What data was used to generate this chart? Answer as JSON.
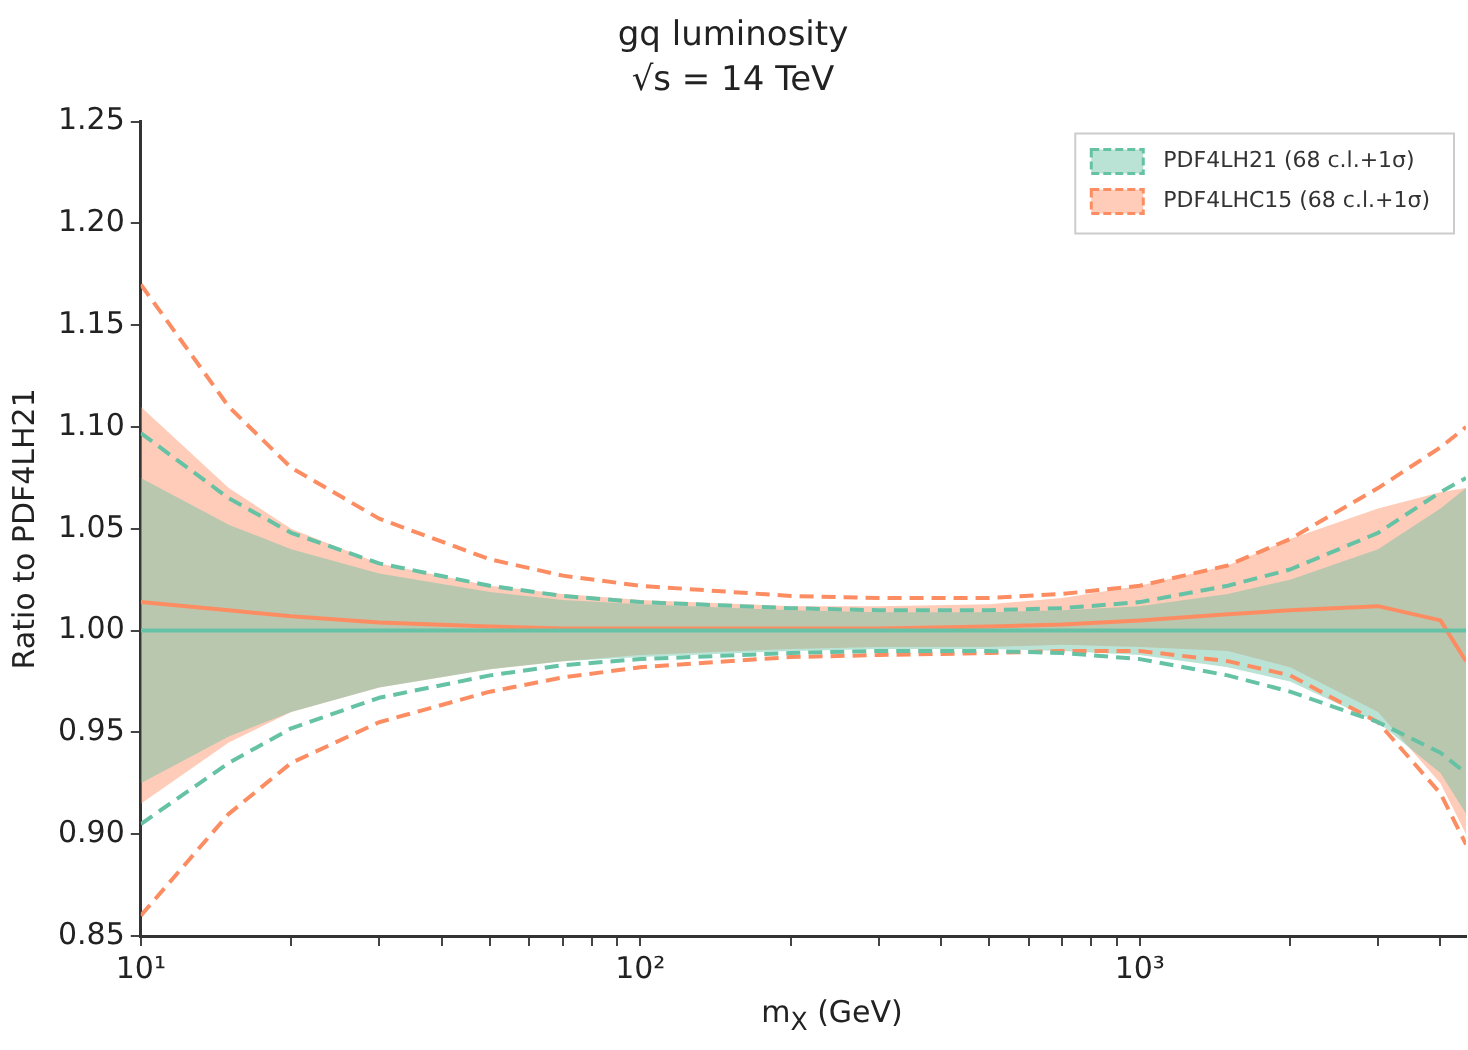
{
  "chart_data": {
    "type": "line",
    "title": "gq luminosity",
    "subtitle": "√s = 14 TeV",
    "xlabel": "m$_{X}$ (GeV)",
    "ylabel": "Ratio to PDF4LH21",
    "x": [
      10,
      15,
      20,
      30,
      50,
      70,
      100,
      200,
      300,
      500,
      700,
      1000,
      1500,
      2000,
      3000,
      4000,
      4500
    ],
    "log": "x",
    "xlim": [
      10,
      4500
    ],
    "ylim": [
      0.85,
      1.25
    ],
    "xticks": [
      {
        "value": 10,
        "label": "10¹"
      },
      {
        "value": 20,
        "label": null
      },
      {
        "value": 30,
        "label": null
      },
      {
        "value": 40,
        "label": null
      },
      {
        "value": 50,
        "label": null
      },
      {
        "value": 60,
        "label": null
      },
      {
        "value": 70,
        "label": null
      },
      {
        "value": 80,
        "label": null
      },
      {
        "value": 90,
        "label": null
      },
      {
        "value": 100,
        "label": "10²"
      },
      {
        "value": 200,
        "label": null
      },
      {
        "value": 300,
        "label": null
      },
      {
        "value": 400,
        "label": null
      },
      {
        "value": 500,
        "label": null
      },
      {
        "value": 600,
        "label": null
      },
      {
        "value": 700,
        "label": null
      },
      {
        "value": 800,
        "label": null
      },
      {
        "value": 900,
        "label": null
      },
      {
        "value": 1000,
        "label": "10³"
      },
      {
        "value": 2000,
        "label": null
      },
      {
        "value": 3000,
        "label": null
      },
      {
        "value": 4000,
        "label": null
      }
    ],
    "yticks": [
      0.85,
      {
        "value": 0.9,
        "label": "0.90"
      },
      0.95,
      {
        "value": 1.0,
        "label": "1.00"
      },
      1.05,
      {
        "value": 1.1,
        "label": "1.10"
      },
      1.15,
      {
        "value": 1.2,
        "label": "1.20"
      },
      1.25
    ],
    "legend": "top right",
    "grid": false,
    "series": [
      {
        "name": "PDF4LH21 (68 c.l.+1σ)",
        "color": "#66c2a5",
        "values": [
          1,
          1,
          1,
          1,
          1,
          1,
          1,
          1,
          1,
          1,
          1,
          1,
          1,
          1,
          1,
          1,
          1
        ],
        "lower": [
          0.925,
          0.948,
          0.96,
          0.972,
          0.981,
          0.985,
          0.987,
          0.99,
          0.991,
          0.991,
          0.99,
          0.988,
          0.982,
          0.975,
          0.955,
          0.93,
          0.91
        ],
        "upper": [
          1.075,
          1.052,
          1.04,
          1.028,
          1.019,
          1.015,
          1.013,
          1.01,
          1.009,
          1.009,
          1.01,
          1.012,
          1.018,
          1.025,
          1.04,
          1.06,
          1.07
        ]
      },
      {
        "name": "PDF4LHC15 (68 c.l.+1σ)",
        "color": "#fc8d62",
        "values": [
          1.014,
          1.01,
          1.007,
          1.004,
          1.002,
          1.001,
          1.001,
          1.001,
          1.001,
          1.002,
          1.003,
          1.005,
          1.008,
          1.01,
          1.012,
          1.005,
          0.985
        ],
        "lower": [
          0.915,
          0.945,
          0.96,
          0.972,
          0.981,
          0.985,
          0.988,
          0.991,
          0.992,
          0.992,
          0.993,
          0.992,
          0.99,
          0.982,
          0.96,
          0.925,
          0.9
        ],
        "upper": [
          1.11,
          1.07,
          1.05,
          1.033,
          1.022,
          1.018,
          1.015,
          1.012,
          1.012,
          1.013,
          1.016,
          1.022,
          1.032,
          1.045,
          1.06,
          1.068,
          1.07
        ]
      },
      {
        "color": "#66c2a5",
        "line_style": "dashed",
        "values": [
          1.097,
          1.065,
          1.048,
          1.033,
          1.022,
          1.017,
          1.014,
          1.011,
          1.01,
          1.01,
          1.011,
          1.014,
          1.022,
          1.03,
          1.048,
          1.068,
          1.075
        ]
      },
      {
        "color": "#66c2a5",
        "line_style": "dashed",
        "values": [
          0.905,
          0.935,
          0.952,
          0.967,
          0.978,
          0.983,
          0.986,
          0.989,
          0.99,
          0.99,
          0.989,
          0.986,
          0.978,
          0.97,
          0.955,
          0.94,
          0.93
        ]
      },
      {
        "color": "#fc8d62",
        "line_style": "dashed",
        "values": [
          1.17,
          1.11,
          1.08,
          1.055,
          1.035,
          1.027,
          1.022,
          1.017,
          1.016,
          1.016,
          1.018,
          1.022,
          1.032,
          1.045,
          1.07,
          1.09,
          1.1
        ]
      },
      {
        "color": "#fc8d62",
        "line_style": "dashed",
        "values": [
          0.86,
          0.91,
          0.935,
          0.955,
          0.97,
          0.977,
          0.982,
          0.987,
          0.988,
          0.989,
          0.99,
          0.99,
          0.985,
          0.978,
          0.955,
          0.92,
          0.895
        ]
      }
    ]
  }
}
